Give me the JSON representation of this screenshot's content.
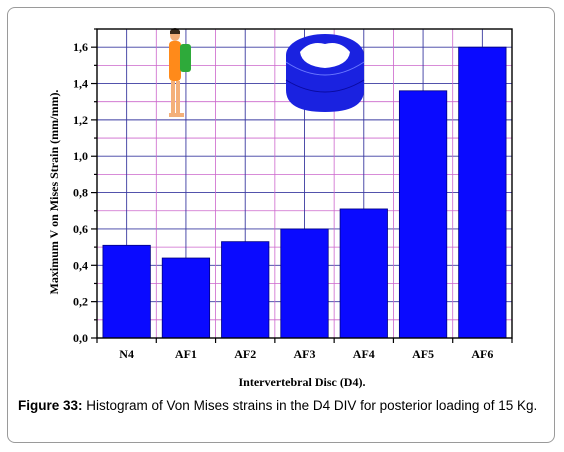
{
  "chart_data": {
    "type": "bar",
    "categories": [
      "N4",
      "AF1",
      "AF2",
      "AF3",
      "AF4",
      "AF5",
      "AF6"
    ],
    "values": [
      0.51,
      0.44,
      0.53,
      0.6,
      0.71,
      1.36,
      1.6
    ],
    "xlabel": "Intervertebral Disc (D4).",
    "ylabel": "Maximum V on Mises Strain (mm/mm).",
    "ylim": [
      0,
      1.7
    ],
    "yticks": [
      "0,0",
      "0,2",
      "0,4",
      "0,6",
      "0,8",
      "1,0",
      "1,2",
      "1,4",
      "1,6"
    ],
    "grid": true,
    "bar_color": "#0a0aff",
    "grid_color": "#cc66cc",
    "grid_color_major": "#3a3aa0"
  },
  "caption": {
    "label": "Figure 33:",
    "text": " Histogram of Von Mises strains in the D4 DIV for posterior loading of 15 Kg."
  },
  "icons": [
    "person-with-backpack-icon",
    "intervertebral-disc-icon"
  ]
}
